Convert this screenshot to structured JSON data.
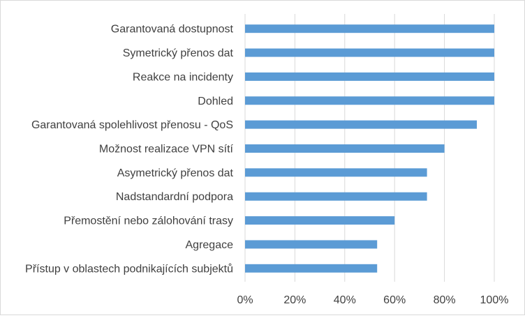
{
  "chart_data": {
    "type": "bar",
    "orientation": "horizontal",
    "categories": [
      "Garantovaná dostupnost",
      "Symetrický přenos dat",
      "Reakce na incidenty",
      "Dohled",
      "Garantovaná spolehlivost přenosu - QoS",
      "Možnost realizace VPN sítí",
      "Asymetrický přenos dat",
      "Nadstandardní podpora",
      "Přemostění nebo zálohování trasy",
      "Agregace",
      "Přístup v oblastech podnikajících subjektů"
    ],
    "values": [
      100,
      100,
      100,
      100,
      93,
      80,
      73,
      73,
      60,
      53,
      53
    ],
    "xlim": [
      0,
      100
    ],
    "x_ticks": [
      "0%",
      "20%",
      "40%",
      "60%",
      "80%",
      "100%"
    ],
    "grid": "vertical",
    "legend": "none",
    "bar_color": "#5b9bd5",
    "grid_color": "#d9d9d9"
  }
}
